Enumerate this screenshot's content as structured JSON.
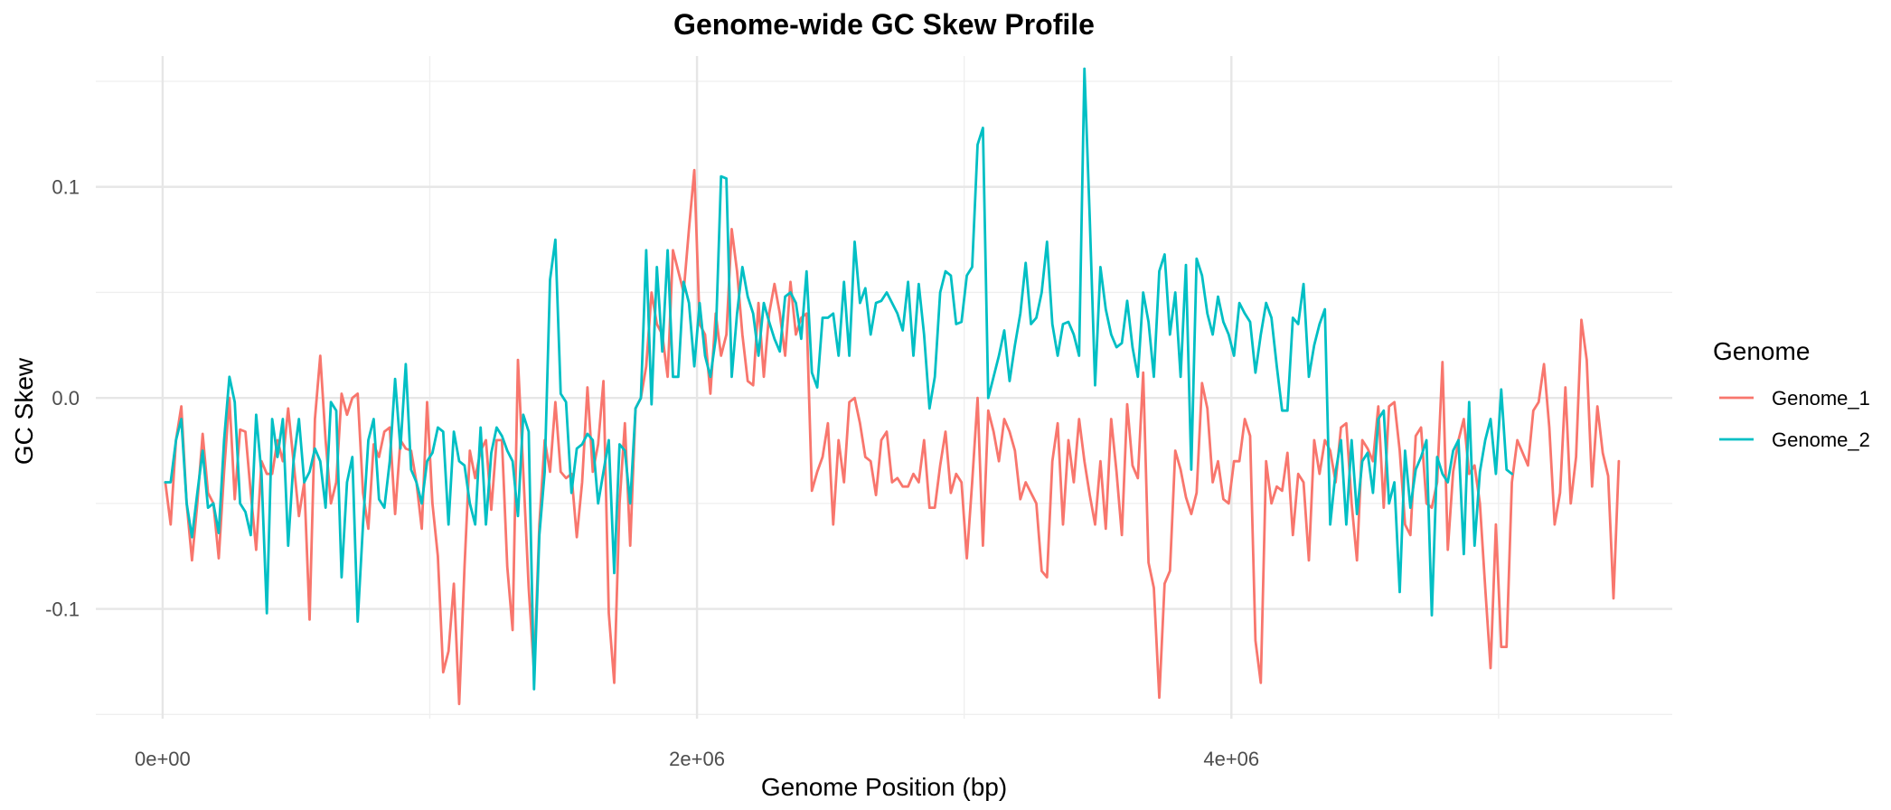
{
  "chart_data": {
    "type": "line",
    "title": "Genome-wide GC Skew Profile",
    "xlabel": "Genome Position (bp)",
    "ylabel": "GC Skew",
    "xlim": [
      -250000,
      5650000
    ],
    "ylim": [
      -0.152,
      0.162
    ],
    "x_major_ticks": [
      0,
      2000000,
      4000000
    ],
    "x_tick_labels": [
      "0e+00",
      "2e+06",
      "4e+06"
    ],
    "x_minor_ticks": [
      1000000,
      3000000,
      5000000
    ],
    "y_major_ticks": [
      -0.1,
      0.0,
      0.1
    ],
    "y_tick_labels": [
      "-0.1",
      "0.0",
      "0.1"
    ],
    "y_minor_ticks": [
      -0.15,
      -0.05,
      0.05,
      0.15
    ],
    "grid": true,
    "legend_position": "right",
    "legend_title": "Genome",
    "series": [
      {
        "name": "Genome_1",
        "color": "#F8766D",
        "x_start": 10000,
        "x_step": 20000,
        "values": [
          -0.04,
          -0.06,
          -0.02,
          -0.004,
          -0.05,
          -0.077,
          -0.05,
          -0.017,
          -0.045,
          -0.05,
          -0.076,
          -0.035,
          0.0,
          -0.048,
          -0.015,
          -0.016,
          -0.045,
          -0.072,
          -0.03,
          -0.036,
          -0.036,
          -0.02,
          -0.03,
          -0.005,
          -0.03,
          -0.056,
          -0.04,
          -0.105,
          -0.01,
          0.02,
          -0.02,
          -0.05,
          -0.04,
          0.002,
          -0.008,
          0.0,
          0.002,
          -0.045,
          -0.062,
          -0.022,
          -0.028,
          -0.016,
          -0.014,
          -0.055,
          -0.02,
          -0.024,
          -0.025,
          -0.04,
          -0.062,
          -0.002,
          -0.05,
          -0.075,
          -0.13,
          -0.12,
          -0.088,
          -0.145,
          -0.08,
          -0.025,
          -0.038,
          -0.025,
          -0.02,
          -0.053,
          -0.02,
          -0.02,
          -0.08,
          -0.11,
          0.018,
          -0.035,
          -0.09,
          -0.13,
          -0.06,
          -0.02,
          -0.035,
          -0.002,
          -0.035,
          -0.038,
          -0.036,
          -0.066,
          -0.04,
          0.005,
          -0.035,
          -0.022,
          0.008,
          -0.102,
          -0.135,
          -0.05,
          -0.012,
          -0.07,
          -0.005,
          0.0,
          0.015,
          0.05,
          0.035,
          0.03,
          0.01,
          0.07,
          0.06,
          0.05,
          0.08,
          0.108,
          0.035,
          0.03,
          0.002,
          0.04,
          0.02,
          0.03,
          0.08,
          0.06,
          0.03,
          0.008,
          0.006,
          0.045,
          0.01,
          0.04,
          0.054,
          0.04,
          0.02,
          0.055,
          0.03,
          0.038,
          0.04,
          -0.044,
          -0.035,
          -0.028,
          -0.012,
          -0.06,
          -0.02,
          -0.04,
          -0.002,
          0.0,
          -0.012,
          -0.028,
          -0.03,
          -0.046,
          -0.02,
          -0.016,
          -0.04,
          -0.038,
          -0.042,
          -0.042,
          -0.036,
          -0.04,
          -0.02,
          -0.052,
          -0.052,
          -0.032,
          -0.016,
          -0.045,
          -0.036,
          -0.04,
          -0.076,
          -0.04,
          0.0,
          -0.07,
          -0.006,
          -0.016,
          -0.03,
          -0.01,
          -0.016,
          -0.025,
          -0.048,
          -0.04,
          -0.045,
          -0.05,
          -0.082,
          -0.085,
          -0.03,
          -0.012,
          -0.06,
          -0.02,
          -0.04,
          -0.01,
          -0.03,
          -0.046,
          -0.06,
          -0.03,
          -0.062,
          -0.01,
          -0.035,
          -0.065,
          -0.003,
          -0.032,
          -0.038,
          0.012,
          -0.078,
          -0.09,
          -0.142,
          -0.088,
          -0.082,
          -0.025,
          -0.034,
          -0.047,
          -0.055,
          -0.045,
          0.007,
          -0.005,
          -0.04,
          -0.03,
          -0.048,
          -0.05,
          -0.03,
          -0.03,
          -0.01,
          -0.018,
          -0.115,
          -0.135,
          -0.03,
          -0.05,
          -0.042,
          -0.044,
          -0.026,
          -0.065,
          -0.036,
          -0.04,
          -0.077,
          -0.02,
          -0.036,
          -0.02,
          -0.025,
          -0.04,
          -0.014,
          -0.012,
          -0.05,
          -0.077,
          -0.02,
          -0.024,
          -0.03,
          -0.004,
          -0.052,
          -0.004,
          -0.002,
          -0.025,
          -0.06,
          -0.065,
          -0.018,
          -0.014,
          -0.05,
          -0.052,
          -0.04,
          0.017,
          -0.072,
          -0.035,
          -0.02,
          -0.01,
          -0.036,
          -0.032,
          -0.05,
          -0.09,
          -0.128,
          -0.06,
          -0.118,
          -0.118,
          -0.04,
          -0.02,
          -0.026,
          -0.032,
          -0.006,
          -0.002,
          0.016,
          -0.014,
          -0.06,
          -0.045,
          0.005,
          -0.05,
          -0.028,
          0.037,
          0.018,
          -0.042,
          -0.004,
          -0.026,
          -0.037,
          -0.095,
          -0.03
        ]
      },
      {
        "name": "Genome_2",
        "color": "#00BFC4",
        "x_start": 10000,
        "x_step": 20000,
        "values": [
          -0.04,
          -0.04,
          -0.02,
          -0.01,
          -0.05,
          -0.066,
          -0.045,
          -0.025,
          -0.052,
          -0.05,
          -0.064,
          -0.02,
          0.01,
          -0.002,
          -0.05,
          -0.054,
          -0.065,
          -0.008,
          -0.036,
          -0.102,
          -0.01,
          -0.028,
          -0.01,
          -0.07,
          -0.03,
          -0.01,
          -0.04,
          -0.035,
          -0.024,
          -0.03,
          -0.052,
          -0.002,
          -0.006,
          -0.085,
          -0.04,
          -0.028,
          -0.106,
          -0.06,
          -0.02,
          -0.01,
          -0.048,
          -0.052,
          -0.03,
          0.009,
          -0.024,
          0.016,
          -0.034,
          -0.04,
          -0.05,
          -0.03,
          -0.026,
          -0.014,
          -0.016,
          -0.06,
          -0.016,
          -0.03,
          -0.032,
          -0.05,
          -0.06,
          -0.014,
          -0.06,
          -0.026,
          -0.014,
          -0.018,
          -0.025,
          -0.03,
          -0.056,
          -0.008,
          -0.016,
          -0.138,
          -0.065,
          -0.035,
          0.056,
          0.075,
          0.002,
          -0.002,
          -0.045,
          -0.024,
          -0.022,
          -0.017,
          -0.02,
          -0.05,
          -0.035,
          -0.02,
          -0.083,
          -0.022,
          -0.025,
          -0.05,
          -0.005,
          0.0,
          0.07,
          -0.003,
          0.062,
          0.022,
          0.07,
          0.01,
          0.01,
          0.055,
          0.045,
          0.015,
          0.045,
          0.02,
          0.01,
          0.028,
          0.105,
          0.104,
          0.01,
          0.04,
          0.062,
          0.048,
          0.04,
          0.02,
          0.045,
          0.036,
          0.028,
          0.022,
          0.048,
          0.05,
          0.045,
          0.028,
          0.06,
          0.012,
          0.005,
          0.038,
          0.038,
          0.04,
          0.02,
          0.055,
          0.02,
          0.074,
          0.045,
          0.052,
          0.03,
          0.045,
          0.046,
          0.05,
          0.045,
          0.04,
          0.032,
          0.055,
          0.02,
          0.054,
          0.03,
          -0.005,
          0.01,
          0.05,
          0.06,
          0.058,
          0.035,
          0.036,
          0.058,
          0.062,
          0.12,
          0.128,
          0.0,
          0.01,
          0.02,
          0.032,
          0.008,
          0.025,
          0.04,
          0.064,
          0.035,
          0.038,
          0.05,
          0.074,
          0.035,
          0.02,
          0.035,
          0.036,
          0.03,
          0.02,
          0.156,
          0.085,
          0.006,
          0.062,
          0.042,
          0.03,
          0.024,
          0.026,
          0.046,
          0.024,
          0.01,
          0.05,
          0.036,
          0.01,
          0.06,
          0.068,
          0.03,
          0.05,
          0.01,
          0.063,
          -0.034,
          0.066,
          0.058,
          0.04,
          0.03,
          0.048,
          0.036,
          0.03,
          0.02,
          0.045,
          0.04,
          0.036,
          0.012,
          0.03,
          0.045,
          0.038,
          0.015,
          -0.006,
          -0.006,
          0.038,
          0.035,
          0.054,
          0.01,
          0.025,
          0.035,
          0.042,
          -0.06,
          -0.035,
          -0.02,
          -0.06,
          -0.02,
          -0.055,
          -0.03,
          -0.026,
          -0.045,
          -0.01,
          -0.006,
          -0.05,
          -0.04,
          -0.092,
          -0.025,
          -0.052,
          -0.034,
          -0.028,
          -0.02,
          -0.103,
          -0.028,
          -0.036,
          -0.04,
          -0.025,
          -0.02,
          -0.074,
          -0.002,
          -0.07,
          -0.035,
          -0.02,
          -0.01,
          -0.036,
          0.004,
          -0.034,
          -0.036
        ]
      }
    ]
  }
}
